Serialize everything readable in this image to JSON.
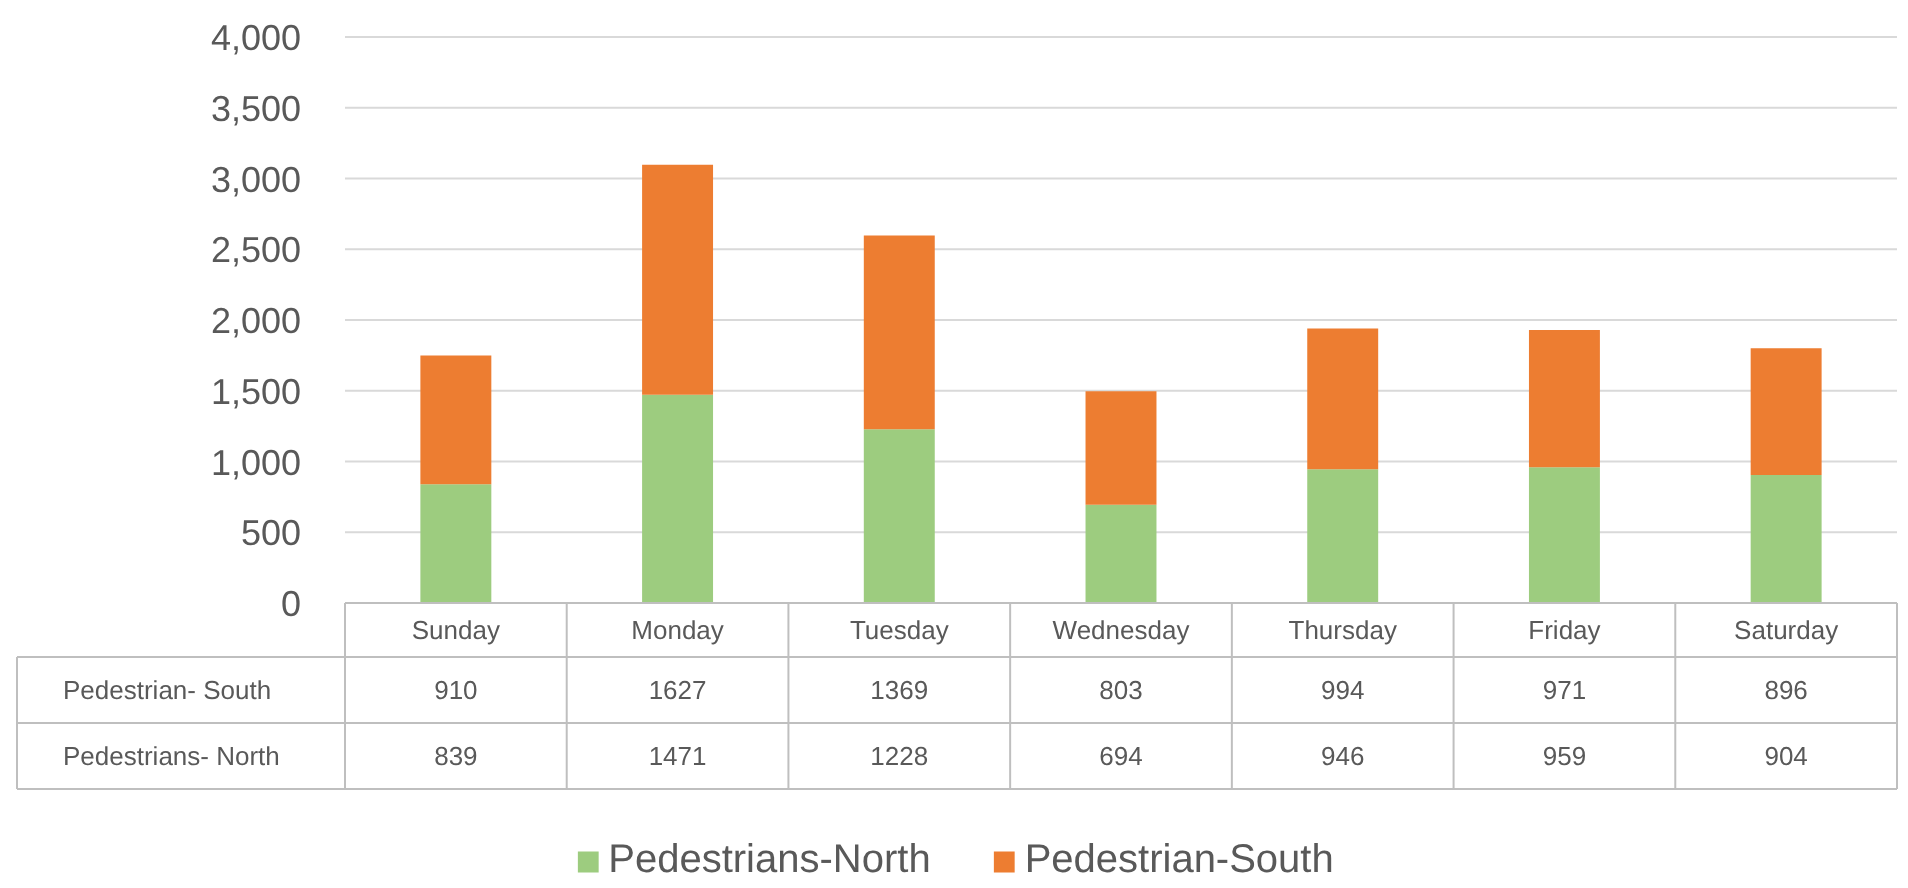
{
  "chart_data": {
    "type": "bar",
    "stacked": true,
    "categories": [
      "Sunday",
      "Monday",
      "Tuesday",
      "Wednesday",
      "Thursday",
      "Friday",
      "Saturday"
    ],
    "series": [
      {
        "name": "Pedestrians-North",
        "color": "#9dcc7f",
        "values": [
          839,
          1471,
          1228,
          694,
          946,
          959,
          904
        ]
      },
      {
        "name": "Pedestrian-South",
        "color": "#ed7d31",
        "values": [
          910,
          1627,
          1369,
          803,
          994,
          971,
          896
        ]
      }
    ],
    "ylim": [
      0,
      4000
    ],
    "yticks": [
      0,
      500,
      {
        "value": 1000,
        "label": "1,000"
      },
      {
        "value": 1500,
        "label": "1,500"
      },
      {
        "value": 2000,
        "label": "2,000"
      },
      {
        "value": 2500,
        "label": "2,500"
      },
      {
        "value": 3000,
        "label": "3,000"
      },
      {
        "value": 3500,
        "label": "3,500"
      },
      {
        "value": 4000,
        "label": "4,000"
      }
    ],
    "grid": "y",
    "legend": "bottom",
    "data_labels": true,
    "annotations": [
      "Pedestrian- South",
      "Pedestrians- North"
    ]
  }
}
